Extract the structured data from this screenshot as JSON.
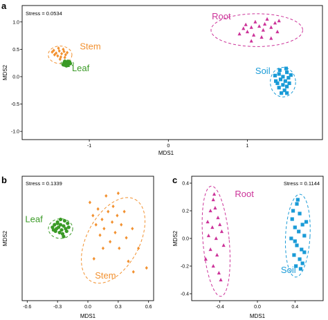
{
  "chart_data": [
    {
      "panel_label": "a",
      "type": "scatter",
      "title": "",
      "xlabel": "MDS1",
      "ylabel": "MDS2",
      "stress_label": "Stress = 0.0534",
      "xlim": [
        -1.85,
        1.95
      ],
      "ylim": [
        -1.15,
        1.3
      ],
      "xticks": [
        -1,
        0,
        1
      ],
      "xtick_labels": [
        "-1",
        "0",
        "1"
      ],
      "yticks": [
        -1.0,
        -0.5,
        0.0,
        0.5,
        1.0
      ],
      "ytick_labels": [
        "-1.0",
        "-0.5",
        "0.0",
        "0.5",
        "1.0"
      ],
      "series": [
        {
          "name": "Root",
          "marker": "triangle",
          "color": "#cc3399",
          "label_at": [
            0.55,
            1.05
          ],
          "ellipse": {
            "cx": 1.12,
            "cy": 0.85,
            "rx": 0.58,
            "ry": 0.3,
            "angle": 0
          },
          "points": [
            [
              0.9,
              0.78
            ],
            [
              0.95,
              0.88
            ],
            [
              1.0,
              0.82
            ],
            [
              1.05,
              0.9
            ],
            [
              1.08,
              0.76
            ],
            [
              1.1,
              1.0
            ],
            [
              1.15,
              0.92
            ],
            [
              1.2,
              0.85
            ],
            [
              1.22,
              0.96
            ],
            [
              1.25,
              1.05
            ],
            [
              1.3,
              0.9
            ],
            [
              1.35,
              0.98
            ],
            [
              1.38,
              0.82
            ],
            [
              1.4,
              1.02
            ],
            [
              1.3,
              0.7
            ],
            [
              1.05,
              0.65
            ],
            [
              1.18,
              0.72
            ],
            [
              0.98,
              0.95
            ]
          ]
        },
        {
          "name": "Stem",
          "marker": "diamond",
          "color": "#f29130",
          "label_at": [
            -1.12,
            0.5
          ],
          "ellipse": {
            "cx": -1.37,
            "cy": 0.4,
            "rx": 0.15,
            "ry": 0.16,
            "angle": 0
          },
          "points": [
            [
              -1.45,
              0.48
            ],
            [
              -1.42,
              0.43
            ],
            [
              -1.38,
              0.47
            ],
            [
              -1.35,
              0.42
            ],
            [
              -1.32,
              0.46
            ],
            [
              -1.4,
              0.38
            ],
            [
              -1.36,
              0.36
            ],
            [
              -1.3,
              0.4
            ],
            [
              -1.44,
              0.4
            ],
            [
              -1.33,
              0.5
            ],
            [
              -1.39,
              0.52
            ],
            [
              -1.28,
              0.44
            ],
            [
              -1.47,
              0.45
            ],
            [
              -1.37,
              0.32
            ],
            [
              -1.31,
              0.35
            ]
          ]
        },
        {
          "name": "Leaf",
          "marker": "circle",
          "color": "#3a9a26",
          "label_at": [
            -1.22,
            0.1
          ],
          "ellipse": {
            "cx": -1.28,
            "cy": 0.24,
            "rx": 0.08,
            "ry": 0.06,
            "angle": 0
          },
          "points": [
            [
              -1.32,
              0.25
            ],
            [
              -1.3,
              0.22
            ],
            [
              -1.28,
              0.26
            ],
            [
              -1.26,
              0.23
            ],
            [
              -1.29,
              0.2
            ],
            [
              -1.25,
              0.27
            ],
            [
              -1.31,
              0.28
            ],
            [
              -1.27,
              0.21
            ],
            [
              -1.24,
              0.24
            ],
            [
              -1.3,
              0.24
            ],
            [
              -1.27,
              0.28
            ],
            [
              -1.33,
              0.22
            ]
          ]
        },
        {
          "name": "Soil",
          "marker": "square",
          "color": "#1a9bd7",
          "label_at": [
            1.1,
            0.05
          ],
          "ellipse": {
            "cx": 1.45,
            "cy": -0.1,
            "rx": 0.16,
            "ry": 0.27,
            "angle": 0
          },
          "points": [
            [
              1.35,
              0.02
            ],
            [
              1.4,
              0.05
            ],
            [
              1.45,
              0.0
            ],
            [
              1.5,
              0.08
            ],
            [
              1.42,
              -0.05
            ],
            [
              1.48,
              -0.08
            ],
            [
              1.52,
              -0.02
            ],
            [
              1.38,
              -0.12
            ],
            [
              1.45,
              -0.15
            ],
            [
              1.5,
              -0.18
            ],
            [
              1.4,
              -0.2
            ],
            [
              1.47,
              -0.25
            ],
            [
              1.53,
              -0.12
            ],
            [
              1.36,
              -0.08
            ],
            [
              1.55,
              0.03
            ],
            [
              1.43,
              -0.3
            ],
            [
              1.5,
              -0.3
            ],
            [
              1.41,
              0.12
            ],
            [
              1.49,
              0.15
            ]
          ]
        }
      ]
    },
    {
      "panel_label": "b",
      "type": "scatter",
      "title": "",
      "xlabel": "MDS1",
      "ylabel": "MDS2",
      "stress_label": "Stress = 0.1339",
      "xlim": [
        -0.65,
        0.65
      ],
      "ylim": [
        -0.6,
        0.35
      ],
      "xticks": [
        -0.6,
        -0.3,
        0.0,
        0.3,
        0.6
      ],
      "xtick_labels": [
        "-0.6",
        "-0.3",
        "0.0",
        "0.3",
        "0.6"
      ],
      "yticks": [],
      "ytick_labels": [],
      "series": [
        {
          "name": "Leaf",
          "marker": "circle",
          "color": "#3a9a26",
          "label_at": [
            -0.62,
            0.0
          ],
          "ellipse": {
            "cx": -0.27,
            "cy": -0.05,
            "rx": 0.12,
            "ry": 0.075,
            "angle": 0
          },
          "points": [
            [
              -0.35,
              -0.04
            ],
            [
              -0.33,
              -0.02
            ],
            [
              -0.31,
              -0.05
            ],
            [
              -0.3,
              -0.01
            ],
            [
              -0.29,
              -0.04
            ],
            [
              -0.27,
              -0.02
            ],
            [
              -0.26,
              -0.06
            ],
            [
              -0.24,
              -0.03
            ],
            [
              -0.22,
              -0.05
            ],
            [
              -0.2,
              -0.01
            ],
            [
              -0.28,
              -0.08
            ],
            [
              -0.25,
              -0.09
            ],
            [
              -0.32,
              -0.07
            ],
            [
              -0.23,
              0.01
            ],
            [
              -0.3,
              0.0
            ],
            [
              -0.21,
              -0.07
            ],
            [
              -0.34,
              -0.06
            ],
            [
              -0.19,
              -0.04
            ],
            [
              -0.27,
              0.02
            ],
            [
              -0.24,
              -0.11
            ]
          ]
        },
        {
          "name": "Stem",
          "marker": "diamond",
          "color": "#f29130",
          "label_at": [
            0.07,
            -0.43
          ],
          "ellipse": {
            "cx": 0.25,
            "cy": -0.14,
            "rx": 0.46,
            "ry": 0.2,
            "angle": -62
          },
          "points": [
            [
              0.02,
              0.15
            ],
            [
              0.05,
              0.05
            ],
            [
              0.08,
              -0.02
            ],
            [
              0.1,
              0.1
            ],
            [
              0.12,
              -0.1
            ],
            [
              0.14,
              0.02
            ],
            [
              0.16,
              -0.05
            ],
            [
              0.18,
              0.2
            ],
            [
              0.2,
              0.08
            ],
            [
              0.22,
              -0.15
            ],
            [
              0.24,
              0.0
            ],
            [
              0.25,
              0.12
            ],
            [
              0.27,
              -0.08
            ],
            [
              0.29,
              0.05
            ],
            [
              0.31,
              -0.2
            ],
            [
              0.33,
              -0.02
            ],
            [
              0.36,
              0.08
            ],
            [
              0.38,
              -0.12
            ],
            [
              0.4,
              -0.3
            ],
            [
              0.44,
              -0.05
            ],
            [
              0.5,
              -0.2
            ],
            [
              0.58,
              -0.35
            ],
            [
              0.3,
              0.22
            ],
            [
              0.15,
              -0.2
            ],
            [
              0.06,
              -0.28
            ],
            [
              0.45,
              -0.38
            ]
          ]
        }
      ]
    },
    {
      "panel_label": "c",
      "type": "scatter",
      "title": "",
      "xlabel": "MDS1",
      "ylabel": "MDS2",
      "stress_label": "Stress = 0.1144",
      "xlim": [
        -0.7,
        0.7
      ],
      "ylim": [
        -0.45,
        0.45
      ],
      "xticks": [
        -0.4,
        0.0,
        0.4
      ],
      "xtick_labels": [
        "-0.4",
        "0.0",
        "0.4"
      ],
      "yticks": [
        -0.4,
        -0.2,
        0.0,
        0.2,
        0.4
      ],
      "ytick_labels": [
        "-0.4",
        "-0.2",
        "0.0",
        "0.2",
        "0.4"
      ],
      "series": [
        {
          "name": "Root",
          "marker": "triangle",
          "color": "#cc3399",
          "label_at": [
            -0.24,
            0.3
          ],
          "ellipse": {
            "cx": -0.44,
            "cy": -0.02,
            "rx": 0.14,
            "ry": 0.4,
            "angle": -5
          },
          "points": [
            [
              -0.5,
              0.2
            ],
            [
              -0.47,
              0.28
            ],
            [
              -0.45,
              0.22
            ],
            [
              -0.42,
              0.15
            ],
            [
              -0.48,
              0.08
            ],
            [
              -0.4,
              0.1
            ],
            [
              -0.52,
              0.02
            ],
            [
              -0.44,
              0.0
            ],
            [
              -0.38,
              0.05
            ],
            [
              -0.5,
              -0.08
            ],
            [
              -0.43,
              -0.12
            ],
            [
              -0.36,
              -0.05
            ],
            [
              -0.47,
              -0.2
            ],
            [
              -0.41,
              -0.25
            ],
            [
              -0.55,
              -0.15
            ],
            [
              -0.39,
              -0.3
            ],
            [
              -0.46,
              0.32
            ],
            [
              -0.53,
              0.12
            ]
          ]
        },
        {
          "name": "Soil",
          "marker": "square",
          "color": "#1a9bd7",
          "label_at": [
            0.25,
            -0.25
          ],
          "ellipse": {
            "cx": 0.43,
            "cy": 0.02,
            "rx": 0.13,
            "ry": 0.3,
            "angle": 3
          },
          "points": [
            [
              0.38,
              0.2
            ],
            [
              0.42,
              0.25
            ],
            [
              0.45,
              0.18
            ],
            [
              0.48,
              0.1
            ],
            [
              0.4,
              0.08
            ],
            [
              0.44,
              0.05
            ],
            [
              0.5,
              0.02
            ],
            [
              0.36,
              0.0
            ],
            [
              0.42,
              -0.05
            ],
            [
              0.47,
              -0.08
            ],
            [
              0.39,
              -0.12
            ],
            [
              0.45,
              -0.15
            ],
            [
              0.5,
              -0.1
            ],
            [
              0.41,
              -0.2
            ],
            [
              0.46,
              -0.22
            ],
            [
              0.52,
              0.12
            ],
            [
              0.37,
              0.14
            ],
            [
              0.43,
              0.28
            ],
            [
              0.48,
              -0.18
            ],
            [
              0.4,
              -0.02
            ]
          ]
        }
      ]
    }
  ]
}
